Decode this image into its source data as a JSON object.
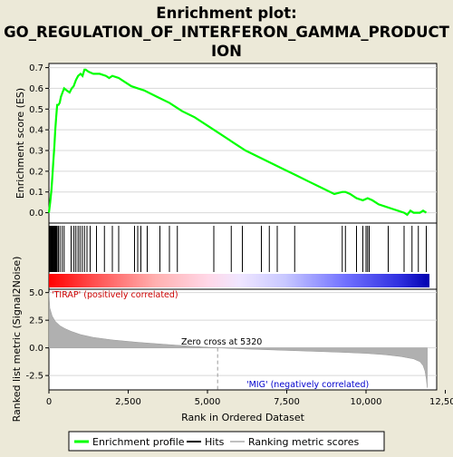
{
  "chart_data": {
    "type": "line",
    "title_lines": [
      "Enrichment plot:",
      "GO_REGULATION_OF_INTERFERON_GAMMA_PRODUCT",
      "ION"
    ],
    "es_panel": {
      "ylabel": "Enrichment score (ES)",
      "ylim": [
        -0.05,
        0.72
      ],
      "yticks": [
        0.0,
        0.1,
        0.2,
        0.3,
        0.4,
        0.5,
        0.6,
        0.7
      ],
      "ytick_labels": [
        "0.0",
        "0.1",
        "0.2",
        "0.3",
        "0.4",
        "0.5",
        "0.6",
        "0.7"
      ],
      "series": {
        "name": "Enrichment profile",
        "color": "#00ff00",
        "x": [
          0,
          40,
          80,
          110,
          140,
          170,
          200,
          230,
          260,
          300,
          340,
          380,
          430,
          480,
          560,
          650,
          720,
          780,
          850,
          920,
          1000,
          1060,
          1120,
          1160,
          1250,
          1400,
          1600,
          1800,
          1900,
          2000,
          2200,
          2400,
          2600,
          2800,
          3000,
          3400,
          3800,
          4200,
          4600,
          5000,
          5400,
          5800,
          6200,
          6600,
          7000,
          7400,
          7800,
          8200,
          8600,
          9000,
          9250,
          9350,
          9500,
          9700,
          9900,
          10050,
          10200,
          10400,
          10600,
          10800,
          11000,
          11200,
          11300,
          11400,
          11500,
          11600,
          11700,
          11800,
          11900
        ],
        "y": [
          0.0,
          0.05,
          0.11,
          0.18,
          0.25,
          0.32,
          0.4,
          0.46,
          0.52,
          0.52,
          0.53,
          0.56,
          0.58,
          0.6,
          0.59,
          0.58,
          0.6,
          0.61,
          0.64,
          0.66,
          0.67,
          0.66,
          0.69,
          0.69,
          0.68,
          0.67,
          0.67,
          0.66,
          0.65,
          0.66,
          0.65,
          0.63,
          0.61,
          0.6,
          0.59,
          0.56,
          0.53,
          0.49,
          0.46,
          0.42,
          0.38,
          0.34,
          0.3,
          0.27,
          0.24,
          0.21,
          0.18,
          0.15,
          0.12,
          0.09,
          0.1,
          0.1,
          0.09,
          0.07,
          0.06,
          0.07,
          0.06,
          0.04,
          0.03,
          0.02,
          0.01,
          0.0,
          -0.01,
          0.01,
          0.0,
          0.0,
          0.0,
          0.01,
          0.0
        ]
      },
      "hits": [
        20,
        40,
        60,
        80,
        100,
        120,
        140,
        160,
        180,
        200,
        220,
        240,
        260,
        300,
        350,
        420,
        480,
        700,
        790,
        850,
        920,
        980,
        1050,
        1120,
        1200,
        1300,
        1500,
        1750,
        2000,
        2200,
        2700,
        2800,
        2900,
        3100,
        3500,
        3800,
        4050,
        5200,
        5750,
        6100,
        6700,
        6950,
        7200,
        7750,
        9250,
        9350,
        9700,
        9900,
        10000,
        10050,
        10100,
        10700,
        11200,
        11450,
        11650,
        11900
      ]
    },
    "rank_panel": {
      "ylabel": "Ranked list metric (Signal2Noise)",
      "ylim": [
        -3.8,
        5.3
      ],
      "yticks": [
        5.0,
        2.5,
        0.0,
        -2.5
      ],
      "ytick_labels": [
        "5.0",
        "2.5",
        "0.0",
        "-2.5"
      ],
      "xlabel": "Rank in Ordered Dataset",
      "xlim": [
        0,
        12500
      ],
      "xticks": [
        0,
        2500,
        5000,
        7500,
        10000,
        12500
      ],
      "xtick_labels": [
        "0",
        "2,500",
        "5,000",
        "7,500",
        "10,000",
        "12,500"
      ],
      "zero_cross": 5320,
      "zero_cross_label": "Zero cross at 5320",
      "positive_label": "'TIRAP' (positively correlated)",
      "negative_label": "'MIG' (negatively correlated)",
      "metric_x": [
        0,
        30,
        100,
        200,
        350,
        500,
        700,
        1000,
        1400,
        2000,
        2800,
        3600,
        4400,
        5320,
        6200,
        7200,
        8200,
        9200,
        10000,
        10600,
        11100,
        11500,
        11700,
        11800,
        11860,
        11900,
        11930
      ],
      "metric_y": [
        5.0,
        3.6,
        2.9,
        2.4,
        2.0,
        1.75,
        1.5,
        1.2,
        0.95,
        0.72,
        0.5,
        0.33,
        0.17,
        0.0,
        -0.1,
        -0.2,
        -0.3,
        -0.4,
        -0.5,
        -0.62,
        -0.78,
        -1.0,
        -1.25,
        -1.6,
        -2.1,
        -2.8,
        -3.6
      ]
    },
    "legend": [
      {
        "label": "Enrichment profile",
        "color": "#00ff00"
      },
      {
        "label": "Hits",
        "color": "#000000"
      },
      {
        "label": "Ranking metric scores",
        "color": "#c0c0c0"
      }
    ],
    "colors": {
      "background": "#ece9d8",
      "plot_bg": "#ffffff",
      "positive_label_color": "#cc0000",
      "negative_label_color": "#0000cc",
      "metric_fill": "#b0b0b0"
    }
  }
}
